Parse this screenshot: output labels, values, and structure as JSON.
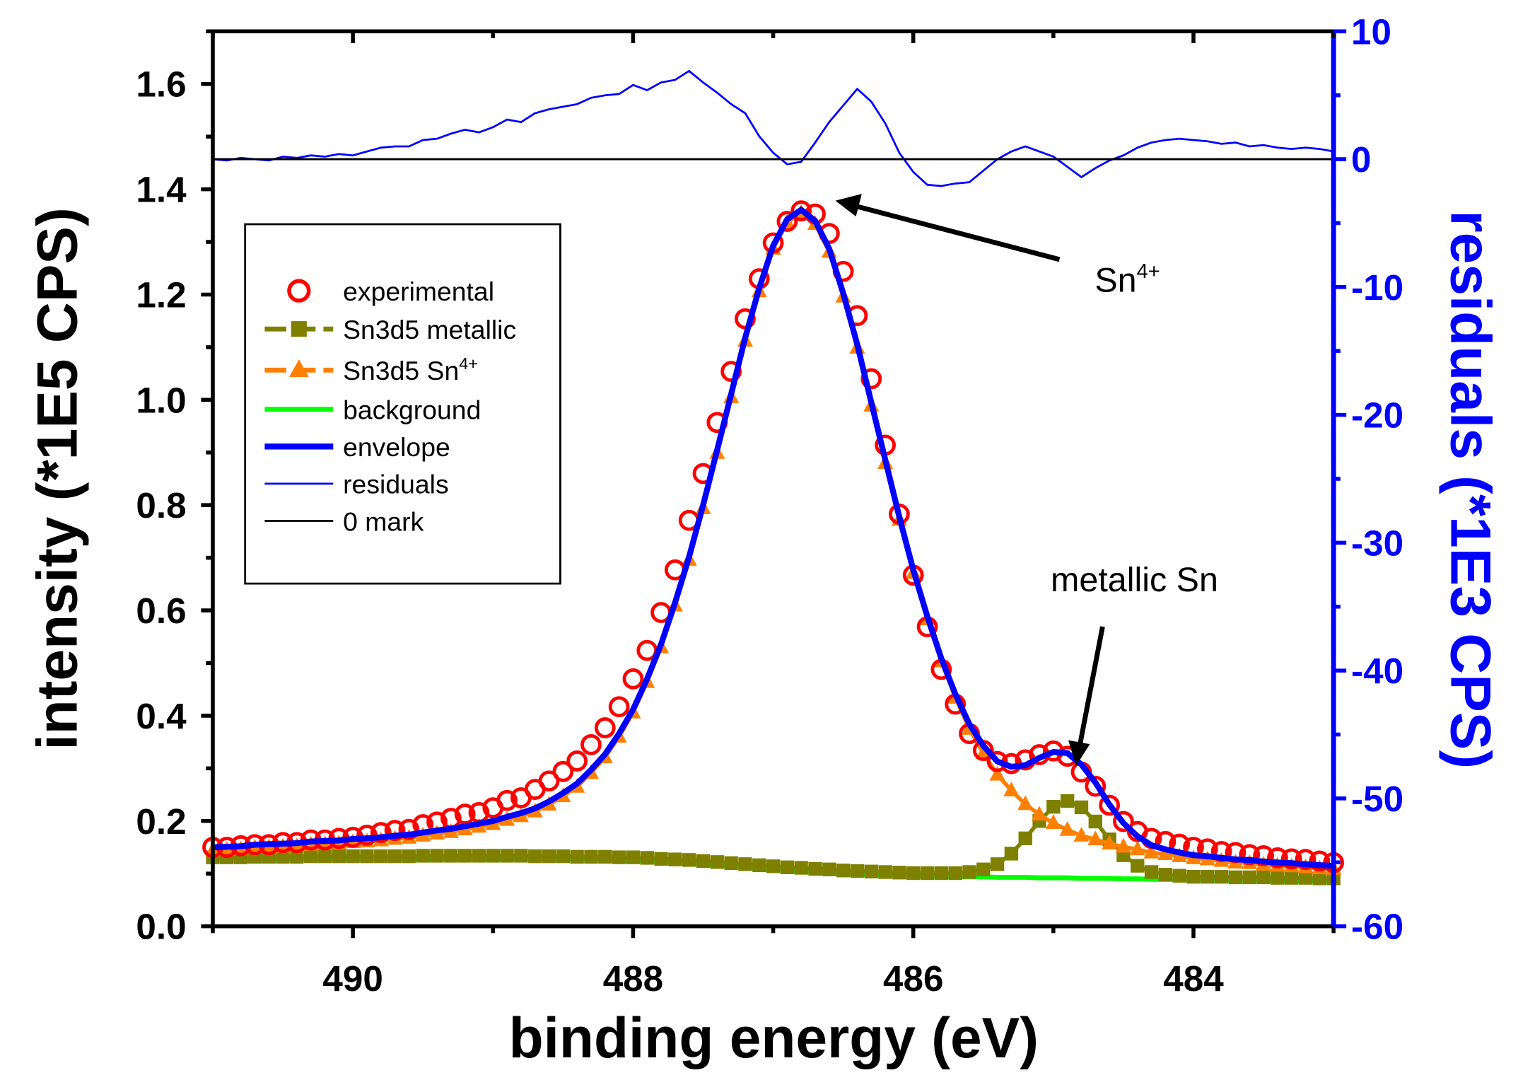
{
  "chart_data": {
    "type": "line",
    "title": "",
    "xlabel": "binding energy (eV)",
    "ylabel": "intensity (*1E5 CPS)",
    "ylabel_right": "residuals (*1E3 CPS)",
    "xlim": [
      491,
      483
    ],
    "ylim": [
      0,
      1.7
    ],
    "ylim_right": [
      -60,
      10
    ],
    "x_ticks": [
      "490",
      "488",
      "486",
      "484"
    ],
    "x_tick_values": [
      490,
      488,
      486,
      484
    ],
    "y_ticks": [
      "0.0",
      "0.2",
      "0.4",
      "0.6",
      "0.8",
      "1.0",
      "1.2",
      "1.4",
      "1.6"
    ],
    "y_tick_values": [
      0,
      0.2,
      0.4,
      0.6,
      0.8,
      1.0,
      1.2,
      1.4,
      1.6
    ],
    "y_right_ticks": [
      "-60",
      "-50",
      "-40",
      "-30",
      "-20",
      "-10",
      "0",
      "10"
    ],
    "y_right_tick_values": [
      -60,
      -50,
      -40,
      -30,
      -20,
      -10,
      0,
      10
    ],
    "grid": false,
    "legend_position": "top-left",
    "legend": [
      {
        "label": "experimental",
        "color": "#ff0000",
        "marker": "circle"
      },
      {
        "label": "Sn3d5 metallic",
        "color": "#808000",
        "marker": "square"
      },
      {
        "label": "Sn3d5 Sn",
        "sup": "4+",
        "color": "#ff8000",
        "marker": "triangle"
      },
      {
        "label": "background",
        "color": "#00ff00",
        "marker": "line"
      },
      {
        "label": "envelope",
        "color": "#0000ff",
        "marker": "thick-line"
      },
      {
        "label": "residuals",
        "color": "#0000ff",
        "marker": "thin-line"
      },
      {
        "label": "0 mark",
        "color": "#000000",
        "marker": "thin-line"
      }
    ],
    "annotations": [
      {
        "text": "Sn",
        "sup": "4+",
        "points_to_x": 486.7,
        "points_to_y": 1.38
      },
      {
        "text": "metallic Sn",
        "points_to_x": 484.85,
        "points_to_y": 0.31
      }
    ],
    "x": [
      491.0,
      490.9,
      490.8,
      490.7,
      490.6,
      490.5,
      490.4,
      490.3,
      490.2,
      490.1,
      490.0,
      489.9,
      489.8,
      489.7,
      489.6,
      489.5,
      489.4,
      489.3,
      489.2,
      489.1,
      489.0,
      488.9,
      488.8,
      488.7,
      488.6,
      488.5,
      488.4,
      488.3,
      488.2,
      488.1,
      488.0,
      487.9,
      487.8,
      487.7,
      487.6,
      487.5,
      487.4,
      487.3,
      487.2,
      487.1,
      487.0,
      486.9,
      486.8,
      486.7,
      486.6,
      486.5,
      486.4,
      486.3,
      486.2,
      486.1,
      486.0,
      485.9,
      485.8,
      485.7,
      485.6,
      485.5,
      485.4,
      485.3,
      485.2,
      485.1,
      485.0,
      484.9,
      484.8,
      484.7,
      484.6,
      484.5,
      484.4,
      484.3,
      484.2,
      484.1,
      484.0,
      483.9,
      483.8,
      483.7,
      483.6,
      483.5,
      483.4,
      483.3,
      483.2,
      483.1,
      483.0
    ],
    "series": [
      {
        "name": "background",
        "color": "#00ff00",
        "axis": "left",
        "values": [
          0.125,
          0.125,
          0.125,
          0.126,
          0.126,
          0.126,
          0.126,
          0.127,
          0.127,
          0.127,
          0.127,
          0.127,
          0.127,
          0.127,
          0.127,
          0.128,
          0.128,
          0.128,
          0.128,
          0.128,
          0.128,
          0.128,
          0.128,
          0.127,
          0.127,
          0.127,
          0.126,
          0.126,
          0.126,
          0.125,
          0.125,
          0.124,
          0.122,
          0.121,
          0.12,
          0.118,
          0.116,
          0.114,
          0.112,
          0.11,
          0.108,
          0.106,
          0.105,
          0.103,
          0.102,
          0.1,
          0.099,
          0.098,
          0.097,
          0.096,
          0.095,
          0.095,
          0.095,
          0.094,
          0.094,
          0.094,
          0.093,
          0.093,
          0.093,
          0.092,
          0.092,
          0.092,
          0.091,
          0.091,
          0.091,
          0.09,
          0.09,
          0.089,
          0.089,
          0.089,
          0.088,
          0.088,
          0.088,
          0.087,
          0.087,
          0.087,
          0.086,
          0.086,
          0.086,
          0.085,
          0.085
        ]
      },
      {
        "name": "Sn3d5 metallic",
        "color": "#808000",
        "axis": "left",
        "values": [
          0.131,
          0.131,
          0.131,
          0.132,
          0.132,
          0.132,
          0.132,
          0.133,
          0.133,
          0.133,
          0.133,
          0.133,
          0.133,
          0.133,
          0.133,
          0.134,
          0.134,
          0.134,
          0.134,
          0.134,
          0.134,
          0.134,
          0.134,
          0.133,
          0.133,
          0.133,
          0.132,
          0.132,
          0.132,
          0.131,
          0.131,
          0.13,
          0.128,
          0.127,
          0.126,
          0.124,
          0.122,
          0.12,
          0.118,
          0.116,
          0.114,
          0.112,
          0.111,
          0.109,
          0.108,
          0.106,
          0.105,
          0.104,
          0.103,
          0.102,
          0.101,
          0.101,
          0.101,
          0.101,
          0.103,
          0.108,
          0.118,
          0.138,
          0.167,
          0.2,
          0.227,
          0.238,
          0.226,
          0.199,
          0.165,
          0.135,
          0.115,
          0.103,
          0.098,
          0.096,
          0.094,
          0.094,
          0.094,
          0.093,
          0.093,
          0.093,
          0.092,
          0.092,
          0.092,
          0.091,
          0.091
        ]
      },
      {
        "name": "Sn3d5 Sn4+",
        "color": "#ff8000",
        "axis": "left",
        "values": [
          0.144,
          0.145,
          0.146,
          0.149,
          0.15,
          0.151,
          0.152,
          0.155,
          0.156,
          0.157,
          0.16,
          0.161,
          0.163,
          0.166,
          0.168,
          0.172,
          0.176,
          0.179,
          0.184,
          0.189,
          0.194,
          0.202,
          0.209,
          0.218,
          0.231,
          0.247,
          0.265,
          0.291,
          0.321,
          0.36,
          0.406,
          0.464,
          0.53,
          0.609,
          0.696,
          0.794,
          0.899,
          1.005,
          1.112,
          1.206,
          1.287,
          1.337,
          1.355,
          1.334,
          1.281,
          1.196,
          1.099,
          0.989,
          0.88,
          0.772,
          0.671,
          0.583,
          0.503,
          0.434,
          0.375,
          0.329,
          0.288,
          0.258,
          0.232,
          0.212,
          0.196,
          0.183,
          0.172,
          0.165,
          0.157,
          0.151,
          0.146,
          0.14,
          0.137,
          0.133,
          0.129,
          0.127,
          0.124,
          0.121,
          0.12,
          0.117,
          0.115,
          0.114,
          0.112,
          0.11,
          0.109
        ]
      },
      {
        "name": "residuals",
        "color": "#0000ff",
        "axis": "right",
        "values": [
          0,
          -0.1,
          0.1,
          0,
          -0.1,
          0.2,
          0.1,
          0.3,
          0.2,
          0.4,
          0.3,
          0.6,
          0.9,
          1.0,
          1.0,
          1.5,
          1.6,
          2.0,
          2.3,
          2.1,
          2.5,
          3.1,
          2.9,
          3.6,
          3.9,
          4.1,
          4.3,
          4.8,
          5.0,
          5.1,
          5.8,
          5.4,
          6.0,
          6.2,
          6.9,
          6.0,
          5.2,
          4.3,
          3.6,
          1.8,
          0.5,
          -0.4,
          -0.2,
          1.3,
          2.9,
          4.2,
          5.5,
          4.5,
          2.8,
          0.5,
          -1.0,
          -2.0,
          -2.1,
          -1.9,
          -1.8,
          -0.9,
          0,
          0.6,
          1.0,
          0.6,
          0.2,
          -0.6,
          -1.4,
          -0.7,
          -0.1,
          0.3,
          0.9,
          1.3,
          1.5,
          1.6,
          1.5,
          1.4,
          1.2,
          1.3,
          1.0,
          1.1,
          0.9,
          0.8,
          0.9,
          0.8,
          0.6
        ]
      }
    ]
  }
}
